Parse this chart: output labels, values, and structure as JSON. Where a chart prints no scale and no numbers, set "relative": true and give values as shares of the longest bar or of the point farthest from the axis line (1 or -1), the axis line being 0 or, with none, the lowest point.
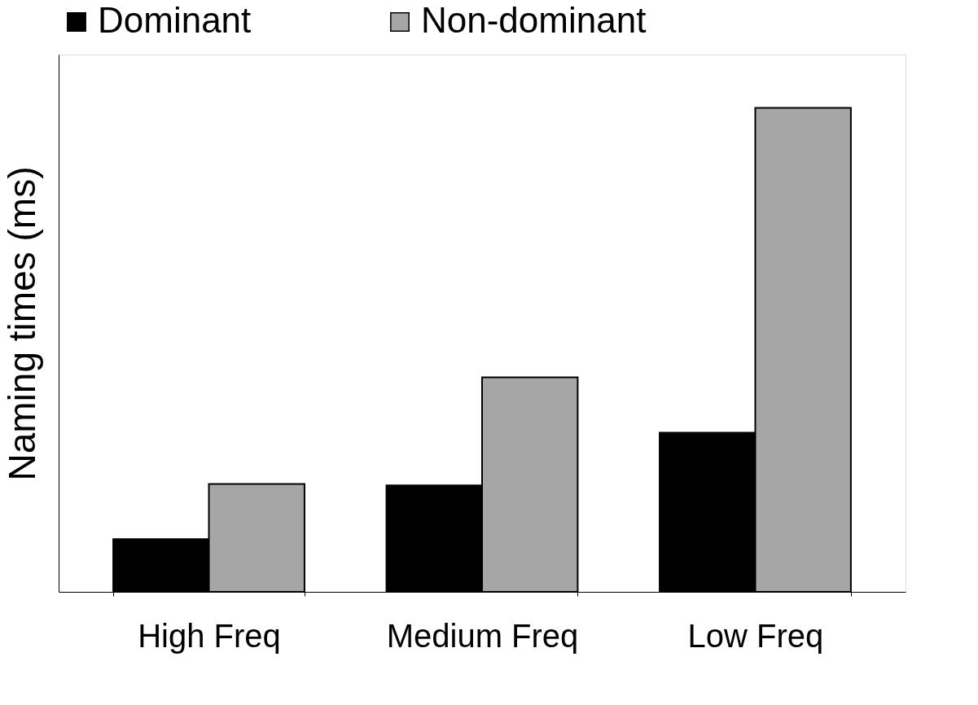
{
  "chart_data": {
    "type": "bar",
    "relative": true,
    "ylabel": "Naming times (ms)",
    "categories": [
      "High Freq",
      "Medium Freq",
      "Low Freq"
    ],
    "series": [
      {
        "name": "Dominant",
        "color": "#000000",
        "values": [
          0.109,
          0.22,
          0.329
        ]
      },
      {
        "name": "Non-dominant",
        "color": "#a6a6a6",
        "values": [
          0.223,
          0.443,
          1
        ]
      }
    ],
    "legend": "top"
  }
}
